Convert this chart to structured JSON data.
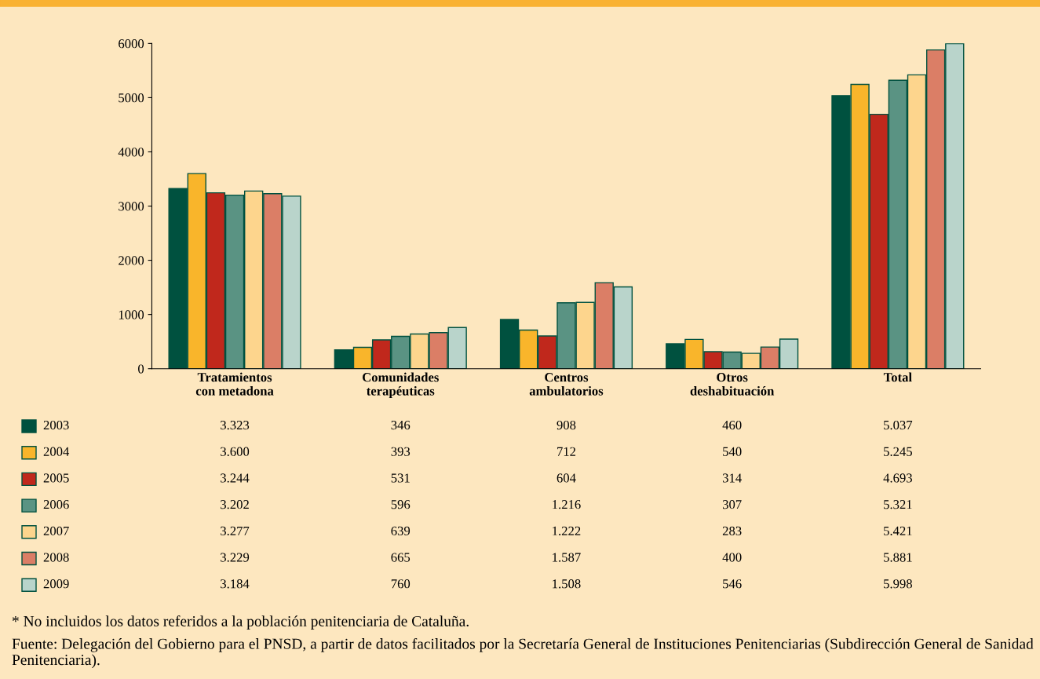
{
  "chart_data": {
    "type": "bar",
    "categories": [
      "Tratamientos\ncon metadona",
      "Comunidades\nterapéuticas",
      "Centros\nambulatorios",
      "Otros\ndeshabituación",
      "Total"
    ],
    "series": [
      {
        "name": "2003",
        "color": "#00513f",
        "values": [
          3323,
          346,
          908,
          460,
          5037
        ],
        "value_labels": [
          "3.323",
          "346",
          "908",
          "460",
          "5.037"
        ]
      },
      {
        "name": "2004",
        "color": "#f9b52b",
        "values": [
          3600,
          393,
          712,
          540,
          5245
        ],
        "value_labels": [
          "3.600",
          "393",
          "712",
          "540",
          "5.245"
        ]
      },
      {
        "name": "2005",
        "color": "#c0281c",
        "values": [
          3244,
          531,
          604,
          314,
          4693
        ],
        "value_labels": [
          "3.244",
          "531",
          "604",
          "314",
          "4.693"
        ]
      },
      {
        "name": "2006",
        "color": "#5a9383",
        "values": [
          3202,
          596,
          1216,
          307,
          5321
        ],
        "value_labels": [
          "3.202",
          "596",
          "1.216",
          "307",
          "5.321"
        ]
      },
      {
        "name": "2007",
        "color": "#fdd58d",
        "values": [
          3277,
          639,
          1222,
          283,
          5421
        ],
        "value_labels": [
          "3.277",
          "639",
          "1.222",
          "283",
          "5.421"
        ]
      },
      {
        "name": "2008",
        "color": "#db7e66",
        "values": [
          3229,
          665,
          1587,
          400,
          5881
        ],
        "value_labels": [
          "3.229",
          "665",
          "1.587",
          "400",
          "5.881"
        ]
      },
      {
        "name": "2009",
        "color": "#b9d4cb",
        "values": [
          3184,
          760,
          1508,
          546,
          5998
        ],
        "value_labels": [
          "3.184",
          "760",
          "1.508",
          "546",
          "5.998"
        ]
      }
    ],
    "ylim": [
      0,
      6000
    ],
    "yticks": [
      0,
      1000,
      2000,
      3000,
      4000,
      5000,
      6000
    ],
    "grid": false,
    "legend": "bottom left",
    "annotations": [
      "* No incluidos los datos referidos a la población penitenciaria de Cataluña.",
      "Fuente: Delegación del Gobierno para el PNSD, a partir de datos facilitados por la Secretaría General de Instituciones Penitenciarias (Subdirección General de Sanidad Penitenciaria)."
    ]
  }
}
